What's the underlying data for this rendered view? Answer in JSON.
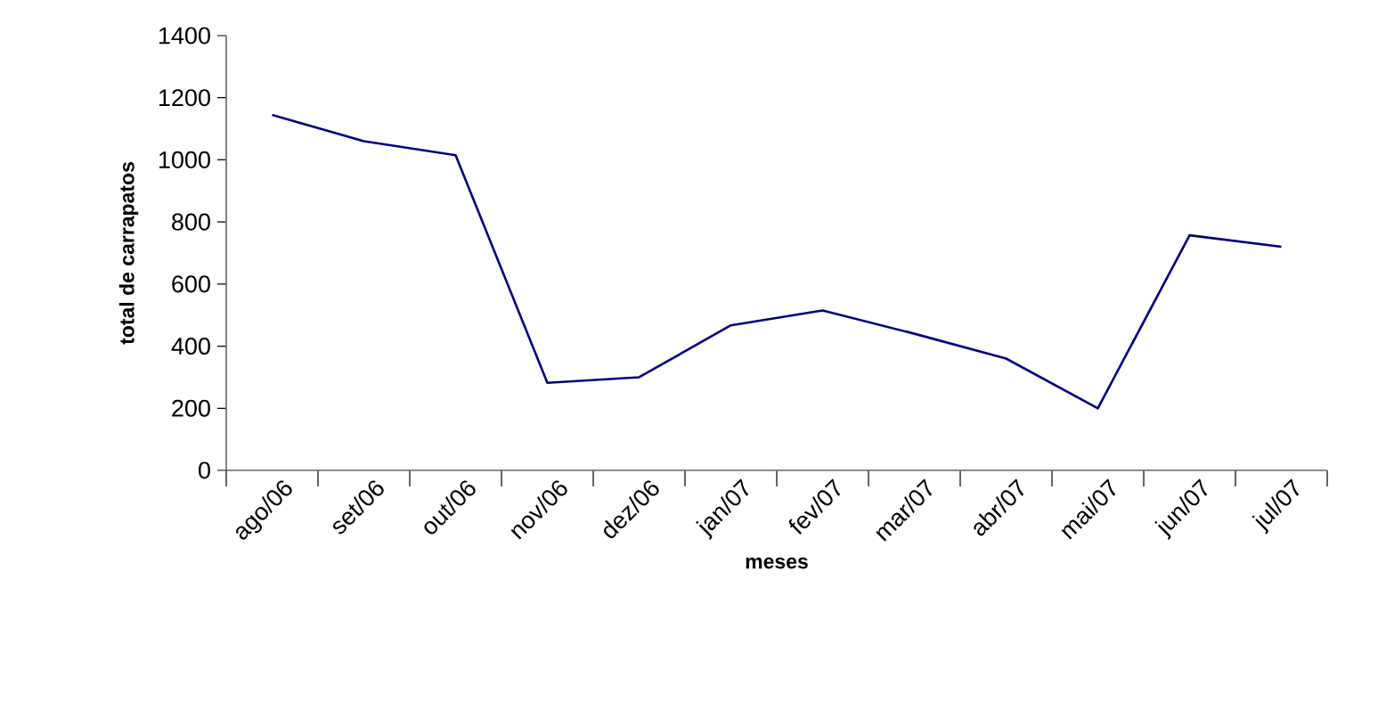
{
  "chart_data": {
    "type": "line",
    "xlabel": "meses",
    "ylabel": "total de carrapatos",
    "categories": [
      "ago/06",
      "set/06",
      "out/06",
      "nov/06",
      "dez/06",
      "jan/07",
      "fev/07",
      "mar/07",
      "abr/07",
      "mai/07",
      "jun/07",
      "jul/07"
    ],
    "values": [
      1145,
      1060,
      1015,
      282,
      300,
      467,
      515,
      440,
      360,
      200,
      757,
      720
    ],
    "color": "#000080",
    "ylim": [
      0,
      1400
    ],
    "yticks": [
      0,
      200,
      400,
      600,
      800,
      1000,
      1200,
      1400
    ],
    "marker": "none",
    "line_style": "solid"
  }
}
